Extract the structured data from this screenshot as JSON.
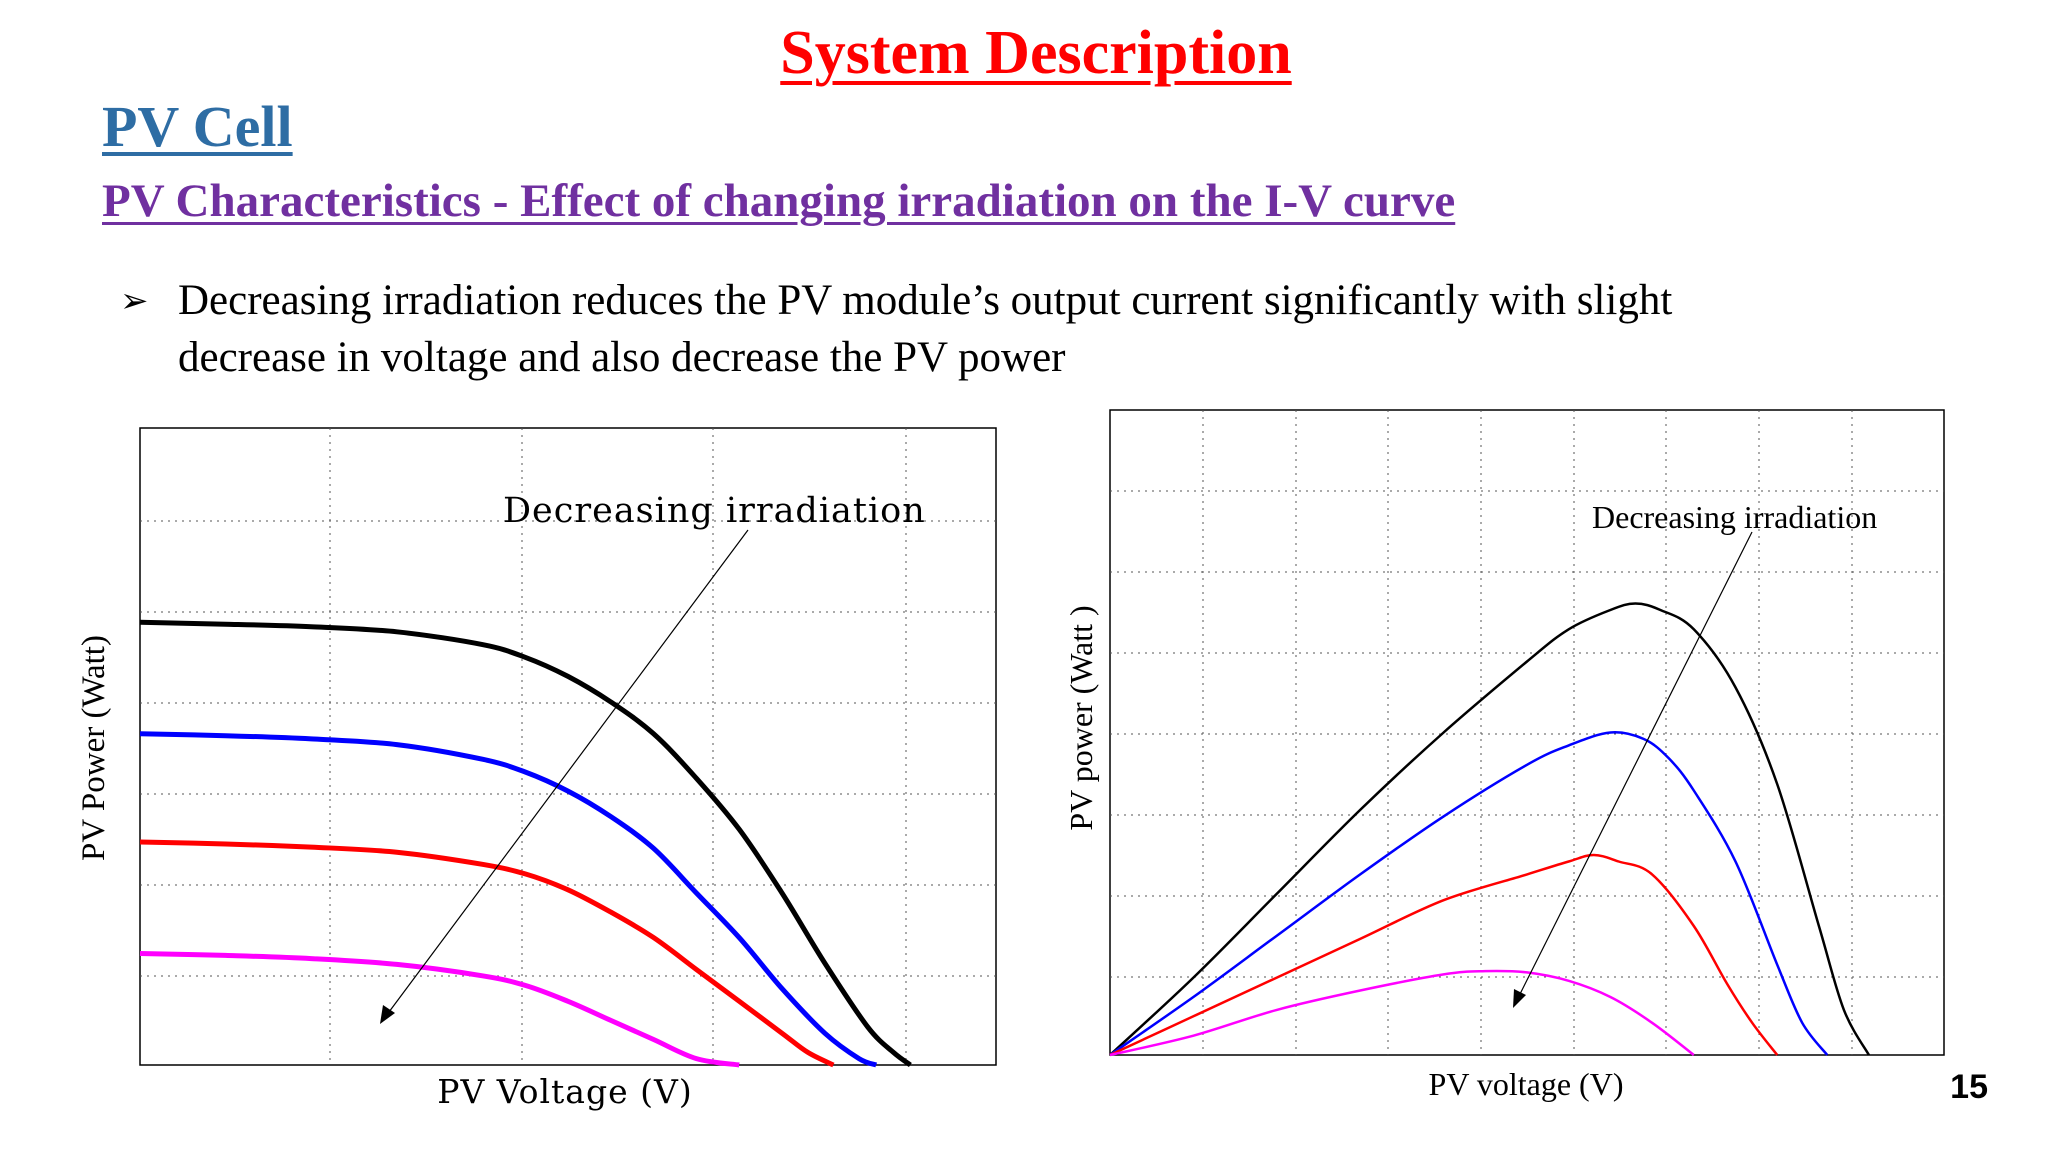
{
  "slide": {
    "title": "System Description",
    "section": "PV Cell",
    "subsection": "PV Characteristics - Effect of changing irradiation on the I-V curve",
    "bullet": {
      "marker": "➢",
      "text": "Decreasing  irradiation reduces the PV module’s output current significantly with slight decrease in voltage and also decrease the PV power"
    },
    "page_number": "15"
  },
  "chart_data": [
    {
      "type": "line",
      "xlabel": "PV Voltage (V)",
      "ylabel": "PV Power (Watt)",
      "annotation": "Decreasing irradiation",
      "xlim": [
        0,
        1
      ],
      "ylim": [
        0,
        1
      ],
      "grid": true,
      "series": [
        {
          "color": "#000000",
          "x": [
            0,
            0.1,
            0.2,
            0.3,
            0.4,
            0.45,
            0.5,
            0.55,
            0.6,
            0.65,
            0.7,
            0.75,
            0.8,
            0.85,
            0.88,
            0.9
          ],
          "y": [
            0.695,
            0.692,
            0.688,
            0.68,
            0.66,
            0.64,
            0.61,
            0.57,
            0.52,
            0.45,
            0.37,
            0.27,
            0.16,
            0.06,
            0.02,
            0.0
          ]
        },
        {
          "color": "#0000ff",
          "x": [
            0,
            0.1,
            0.2,
            0.3,
            0.4,
            0.45,
            0.5,
            0.55,
            0.6,
            0.65,
            0.7,
            0.75,
            0.8,
            0.84,
            0.86
          ],
          "y": [
            0.52,
            0.517,
            0.512,
            0.503,
            0.48,
            0.46,
            0.43,
            0.39,
            0.34,
            0.27,
            0.2,
            0.12,
            0.05,
            0.01,
            0.0
          ]
        },
        {
          "color": "#ff0000",
          "x": [
            0,
            0.1,
            0.2,
            0.3,
            0.4,
            0.45,
            0.5,
            0.55,
            0.6,
            0.65,
            0.7,
            0.75,
            0.78,
            0.81
          ],
          "y": [
            0.35,
            0.347,
            0.342,
            0.334,
            0.315,
            0.3,
            0.275,
            0.24,
            0.2,
            0.15,
            0.1,
            0.05,
            0.02,
            0.0
          ]
        },
        {
          "color": "#ff00ff",
          "x": [
            0,
            0.1,
            0.2,
            0.3,
            0.4,
            0.45,
            0.5,
            0.55,
            0.6,
            0.65,
            0.7
          ],
          "y": [
            0.175,
            0.172,
            0.167,
            0.158,
            0.14,
            0.125,
            0.1,
            0.07,
            0.04,
            0.01,
            0.0
          ]
        }
      ]
    },
    {
      "type": "line",
      "xlabel": "PV voltage (V)",
      "ylabel": "PV power (Watt )",
      "annotation": "Decreasing irradiation",
      "xlim": [
        0,
        1
      ],
      "ylim": [
        0,
        1
      ],
      "grid": true,
      "series": [
        {
          "color": "#000000",
          "x": [
            0,
            0.1,
            0.2,
            0.3,
            0.4,
            0.5,
            0.55,
            0.6,
            0.63,
            0.66,
            0.7,
            0.75,
            0.8,
            0.85,
            0.88,
            0.91
          ],
          "y": [
            0,
            0.12,
            0.25,
            0.38,
            0.5,
            0.61,
            0.66,
            0.69,
            0.7,
            0.69,
            0.66,
            0.57,
            0.42,
            0.2,
            0.07,
            0.0
          ]
        },
        {
          "color": "#0000ff",
          "x": [
            0,
            0.1,
            0.2,
            0.3,
            0.4,
            0.5,
            0.55,
            0.6,
            0.64,
            0.67,
            0.7,
            0.75,
            0.8,
            0.83,
            0.86
          ],
          "y": [
            0,
            0.09,
            0.185,
            0.28,
            0.37,
            0.45,
            0.48,
            0.5,
            0.49,
            0.46,
            0.41,
            0.3,
            0.14,
            0.05,
            0.0
          ]
        },
        {
          "color": "#ff0000",
          "x": [
            0,
            0.1,
            0.2,
            0.3,
            0.4,
            0.5,
            0.55,
            0.58,
            0.61,
            0.65,
            0.7,
            0.74,
            0.77,
            0.8
          ],
          "y": [
            0,
            0.06,
            0.12,
            0.18,
            0.24,
            0.28,
            0.3,
            0.31,
            0.3,
            0.28,
            0.2,
            0.11,
            0.05,
            0.0
          ]
        },
        {
          "color": "#ff00ff",
          "x": [
            0,
            0.1,
            0.2,
            0.3,
            0.4,
            0.45,
            0.5,
            0.55,
            0.6,
            0.65,
            0.7
          ],
          "y": [
            0,
            0.03,
            0.07,
            0.1,
            0.125,
            0.13,
            0.128,
            0.115,
            0.09,
            0.05,
            0.0
          ]
        }
      ]
    }
  ]
}
